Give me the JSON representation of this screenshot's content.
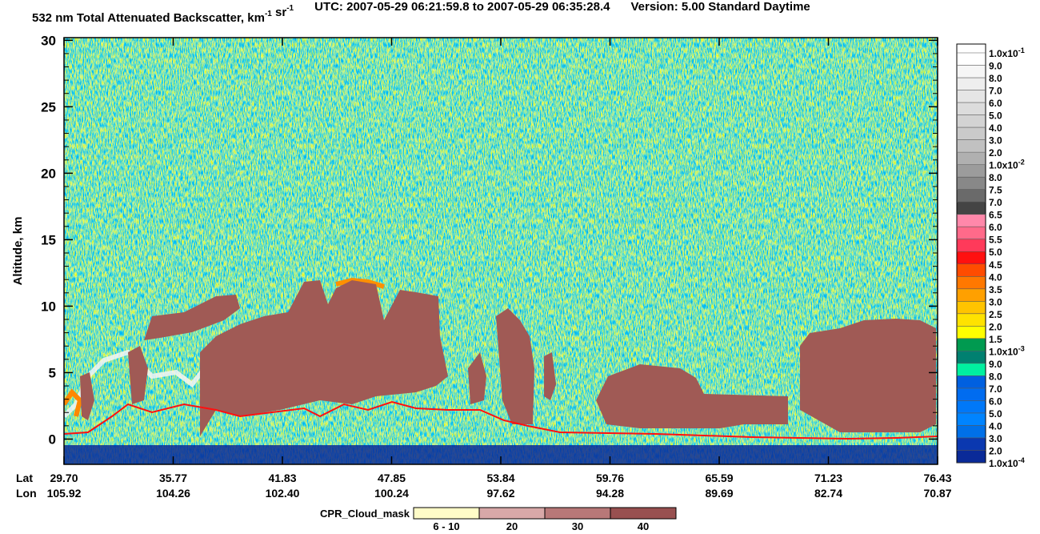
{
  "chart_data": {
    "type": "curtain",
    "title_parts": [
      {
        "text": "532 nm Total Attenuated Backscatter, km"
      },
      {
        "sup": "-1"
      },
      {
        "text": " sr"
      },
      {
        "sup": "-1"
      }
    ],
    "utc": "UTC:  2007-05-29 06:21:59.8  to  2007-05-29 06:35:28.4",
    "version": "Version: 5.00  Standard  Daytime",
    "y_label": "Altitude, km",
    "ylim": [
      -1.9,
      30.2
    ],
    "yticks": [
      0,
      5,
      10,
      15,
      20,
      25,
      30
    ],
    "x_rows": [
      {
        "name": "Lat",
        "values": [
          "29.70",
          "35.77",
          "41.83",
          "47.85",
          "53.84",
          "59.76",
          "65.59",
          "71.23",
          "76.43"
        ]
      },
      {
        "name": "Lon",
        "values": [
          "105.92",
          "104.26",
          "102.40",
          "100.24",
          "97.62",
          "94.28",
          "89.69",
          "82.74",
          "70.87"
        ]
      }
    ],
    "colorbar": {
      "labels": [
        {
          "text": "1.0x10",
          "sup": "-1"
        },
        {
          "text": "9.0"
        },
        {
          "text": "8.0"
        },
        {
          "text": "7.0"
        },
        {
          "text": "6.0"
        },
        {
          "text": "5.0"
        },
        {
          "text": "4.0"
        },
        {
          "text": "3.0"
        },
        {
          "text": "2.0"
        },
        {
          "text": "1.0x10",
          "sup": "-2"
        },
        {
          "text": "8.0"
        },
        {
          "text": "7.5"
        },
        {
          "text": "7.0"
        },
        {
          "text": "6.5"
        },
        {
          "text": "6.0"
        },
        {
          "text": "5.5"
        },
        {
          "text": "5.0"
        },
        {
          "text": "4.5"
        },
        {
          "text": "4.0"
        },
        {
          "text": "3.5"
        },
        {
          "text": "3.0"
        },
        {
          "text": "2.5"
        },
        {
          "text": "2.0"
        },
        {
          "text": "1.5"
        },
        {
          "text": "1.0x10",
          "sup": "-3"
        },
        {
          "text": "9.0"
        },
        {
          "text": "8.0"
        },
        {
          "text": "7.0"
        },
        {
          "text": "6.0"
        },
        {
          "text": "5.0"
        },
        {
          "text": "4.0"
        },
        {
          "text": "3.0"
        },
        {
          "text": "2.0"
        },
        {
          "text": "1.0x10",
          "sup": "-4"
        }
      ],
      "colors": [
        "#ffffff",
        "#f6f6f6",
        "#eeeeee",
        "#e5e5e5",
        "#dcdcdc",
        "#d3d3d3",
        "#cacaca",
        "#c1c1c1",
        "#b0b0b0",
        "#9c9c9c",
        "#888888",
        "#6a6a6a",
        "#444444",
        "#ff88aa",
        "#ff6a8a",
        "#ff3a5a",
        "#ff1010",
        "#ff4c00",
        "#ff7800",
        "#ffa000",
        "#ffc400",
        "#ffe200",
        "#ffff00",
        "#009a50",
        "#008070",
        "#00f0a0",
        "#0060e0",
        "#006cf0",
        "#0078f8",
        "#0084ff",
        "#0070e8",
        "#0a38b0",
        "#0a2a98"
      ]
    },
    "cloud_legend": {
      "title": "CPR_Cloud_mask",
      "categories": [
        "6 - 10",
        "20",
        "30",
        "40"
      ],
      "colors": [
        "#fffcc8",
        "#d8a8a8",
        "#b87878",
        "#985050"
      ]
    }
  }
}
